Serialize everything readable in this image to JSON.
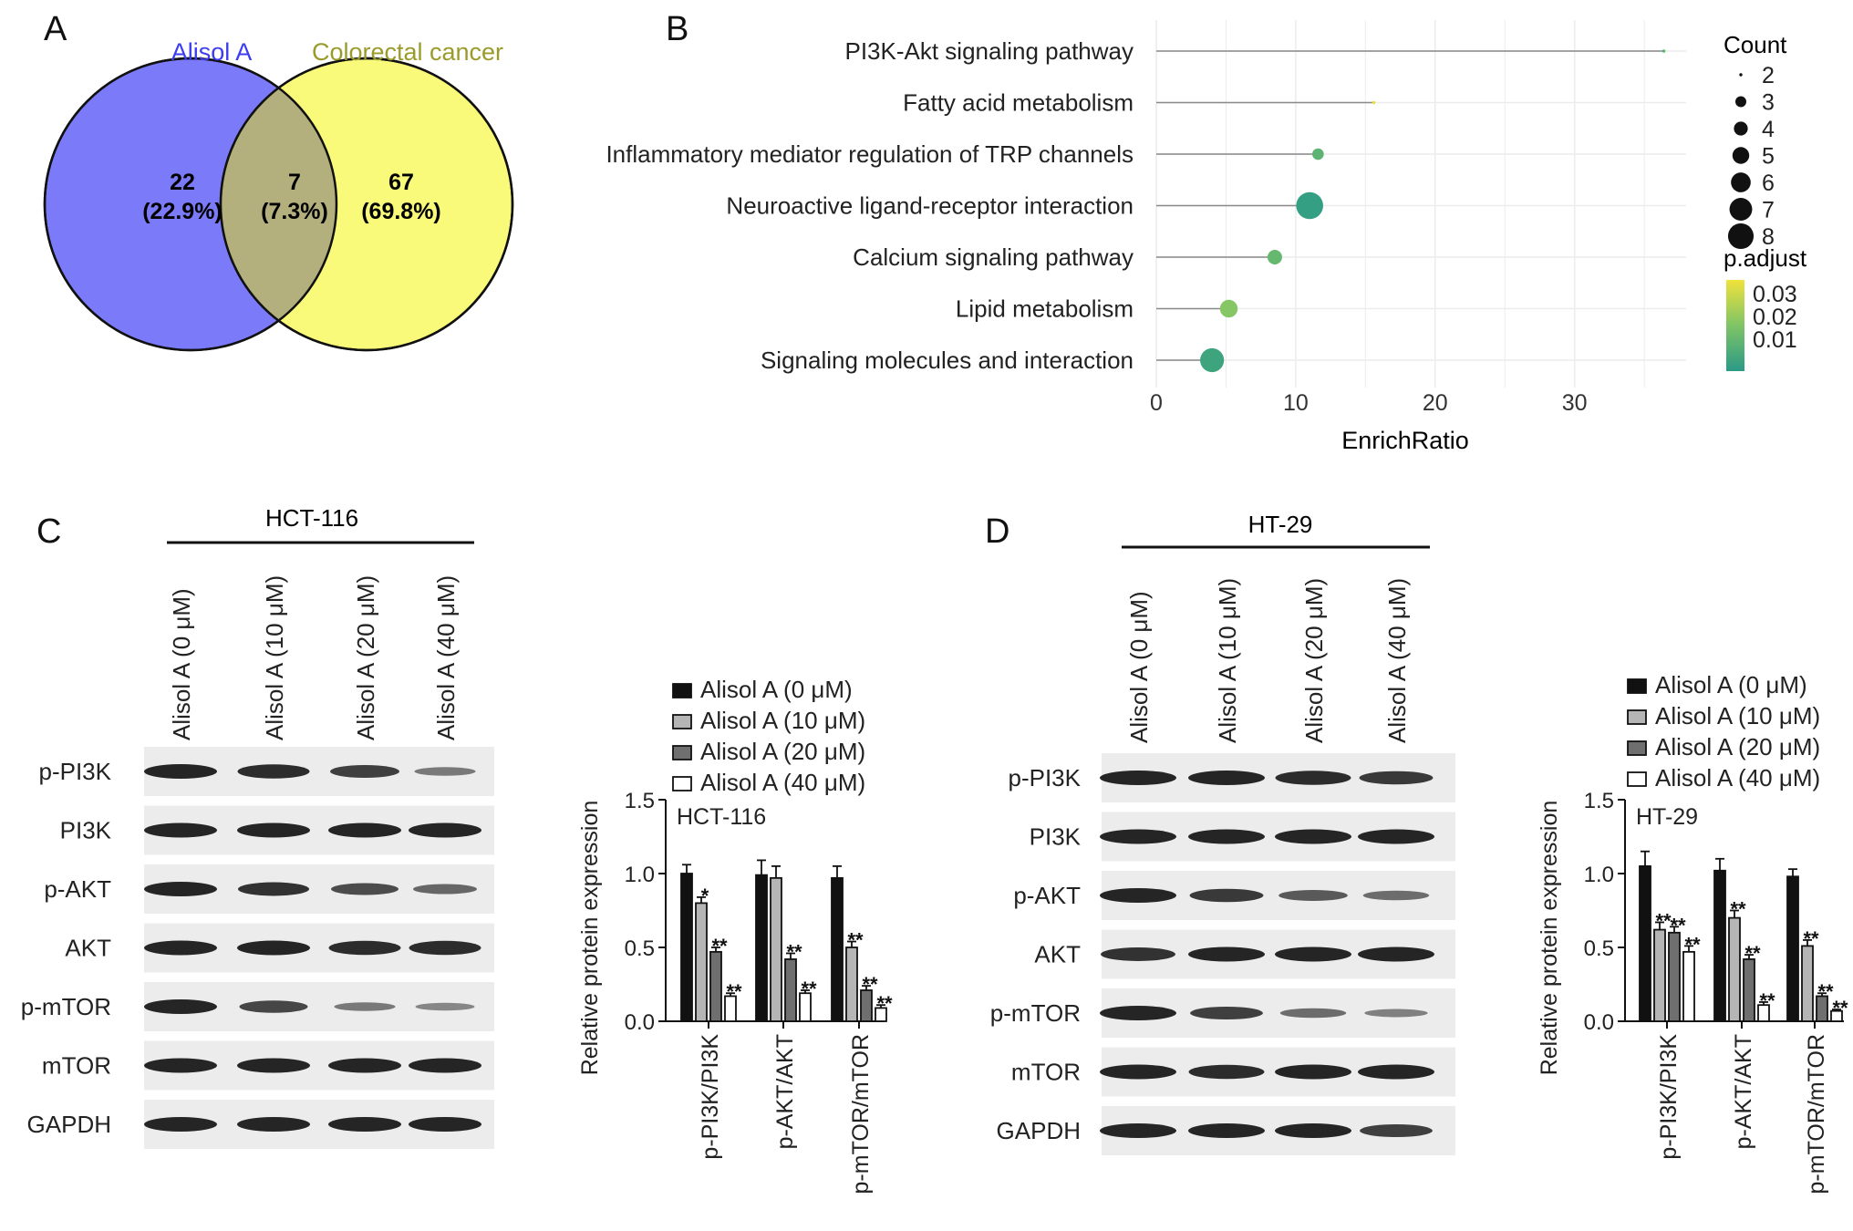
{
  "panels": {
    "a": "A",
    "b": "B",
    "c": "C",
    "d": "D"
  },
  "venn": {
    "left_label": "Alisol A",
    "right_label": "Colorectal cancer",
    "left_count": "22",
    "left_pct": "(22.9%)",
    "overlap_count": "7",
    "overlap_pct": "(7.3%)",
    "right_count": "67",
    "right_pct": "(69.8%)",
    "colors": {
      "left": "#7b7bfa",
      "right": "#f9f97a",
      "overlap": "#b3b07e",
      "left_label": "#3c3cf0",
      "right_label": "#9b9b2a"
    }
  },
  "blot_c": {
    "cell_line": "HCT-116",
    "lanes": [
      "Alisol A (0 μM)",
      "Alisol A (10 μM)",
      "Alisol A (20 μM)",
      "Alisol A (40 μM)"
    ],
    "rows": [
      "p-PI3K",
      "PI3K",
      "p-AKT",
      "AKT",
      "p-mTOR",
      "mTOR",
      "GAPDH"
    ],
    "intensities": [
      [
        1,
        0.95,
        0.8,
        0.35
      ],
      [
        1,
        1,
        1,
        1
      ],
      [
        1,
        0.9,
        0.7,
        0.5
      ],
      [
        1,
        1,
        0.95,
        0.95
      ],
      [
        1,
        0.75,
        0.35,
        0.25
      ],
      [
        1,
        1,
        1,
        1
      ],
      [
        1,
        1,
        1,
        1
      ]
    ]
  },
  "blot_d": {
    "cell_line": "HT-29",
    "lanes": [
      "Alisol A (0 μM)",
      "Alisol A (10 μM)",
      "Alisol A (20 μM)",
      "Alisol A (40 μM)"
    ],
    "rows": [
      "p-PI3K",
      "PI3K",
      "p-AKT",
      "AKT",
      "p-mTOR",
      "mTOR",
      "GAPDH"
    ],
    "intensities": [
      [
        1,
        1,
        0.95,
        0.85
      ],
      [
        1,
        1,
        1,
        1
      ],
      [
        1,
        0.85,
        0.6,
        0.45
      ],
      [
        0.9,
        1,
        1,
        1
      ],
      [
        1,
        0.8,
        0.45,
        0.3
      ],
      [
        1,
        0.95,
        1,
        1
      ],
      [
        1,
        1,
        1,
        0.8
      ]
    ]
  },
  "chart_data": [
    {
      "type": "scatter",
      "xlabel": "EnrichRatio",
      "xlim": [
        0,
        38
      ],
      "xticks": [
        0,
        10,
        20,
        30
      ],
      "categories": [
        "PI3K-Akt signaling pathway",
        "Fatty acid metabolism",
        "Inflammatory mediator regulation of TRP channels",
        "Neuroactive ligand-receptor interaction",
        "Calcium signaling pathway",
        "Lipid metabolism",
        "Signaling molecules and interaction"
      ],
      "x": [
        36.4,
        15.6,
        11.6,
        11.0,
        8.5,
        5.2,
        4.0
      ],
      "count": [
        2,
        2,
        3,
        8,
        4,
        5,
        7
      ],
      "p_adjust": [
        0.012,
        0.035,
        0.012,
        0.004,
        0.014,
        0.02,
        0.006
      ],
      "size_legend": {
        "title": "Count",
        "values": [
          2,
          3,
          4,
          5,
          6,
          7,
          8
        ]
      },
      "color_legend": {
        "title": "p.adjust",
        "ticks": [
          0.03,
          0.02,
          0.01
        ],
        "low_color": "#2a9a86",
        "high_color": "#f0e23c"
      },
      "grid": true
    },
    {
      "type": "bar",
      "title": "HCT-116",
      "ylabel": "Relative protein expression",
      "ylim": [
        0,
        1.5
      ],
      "yticks": [
        "0.0",
        "0.5",
        "1.0",
        "1.5"
      ],
      "categories": [
        "p-PI3K/PI3K",
        "p-AKT/AKT",
        "p-mTOR/mTOR"
      ],
      "series": [
        {
          "name": "Alisol A (0 μM)",
          "values": [
            1.0,
            0.99,
            0.97
          ],
          "errors": [
            0.06,
            0.1,
            0.08
          ],
          "sig": [
            "",
            "",
            ""
          ]
        },
        {
          "name": "Alisol A (10 μM)",
          "values": [
            0.8,
            0.97,
            0.5
          ],
          "errors": [
            0.04,
            0.08,
            0.04
          ],
          "sig": [
            "*",
            "",
            "**"
          ]
        },
        {
          "name": "Alisol A (20 μM)",
          "values": [
            0.47,
            0.42,
            0.21
          ],
          "errors": [
            0.03,
            0.04,
            0.03
          ],
          "sig": [
            "**",
            "**",
            "**"
          ]
        },
        {
          "name": "Alisol A (40 μM)",
          "values": [
            0.17,
            0.19,
            0.09
          ],
          "errors": [
            0.02,
            0.02,
            0.02
          ],
          "sig": [
            "**",
            "**",
            "**"
          ]
        }
      ],
      "colors": [
        "#111111",
        "#b5b5b5",
        "#6f6f6f",
        "#ffffff"
      ]
    },
    {
      "type": "bar",
      "title": "HT-29",
      "ylabel": "Relative protein expression",
      "ylim": [
        0,
        1.5
      ],
      "yticks": [
        "0.0",
        "0.5",
        "1.0",
        "1.5"
      ],
      "categories": [
        "p-PI3K/PI3K",
        "p-AKT/AKT",
        "p-mTOR/mTOR"
      ],
      "series": [
        {
          "name": "Alisol A (0 μM)",
          "values": [
            1.05,
            1.02,
            0.98
          ],
          "errors": [
            0.1,
            0.08,
            0.05
          ],
          "sig": [
            "",
            "",
            ""
          ]
        },
        {
          "name": "Alisol A (10 μM)",
          "values": [
            0.62,
            0.7,
            0.51
          ],
          "errors": [
            0.05,
            0.05,
            0.04
          ],
          "sig": [
            "**",
            "**",
            "**"
          ]
        },
        {
          "name": "Alisol A (20 μM)",
          "values": [
            0.6,
            0.42,
            0.17
          ],
          "errors": [
            0.04,
            0.03,
            0.02
          ],
          "sig": [
            "**",
            "**",
            "**"
          ]
        },
        {
          "name": "Alisol A (40 μM)",
          "values": [
            0.47,
            0.11,
            0.07
          ],
          "errors": [
            0.04,
            0.02,
            0.01
          ],
          "sig": [
            "**",
            "**",
            "**"
          ]
        }
      ],
      "colors": [
        "#111111",
        "#b5b5b5",
        "#6f6f6f",
        "#ffffff"
      ]
    }
  ]
}
